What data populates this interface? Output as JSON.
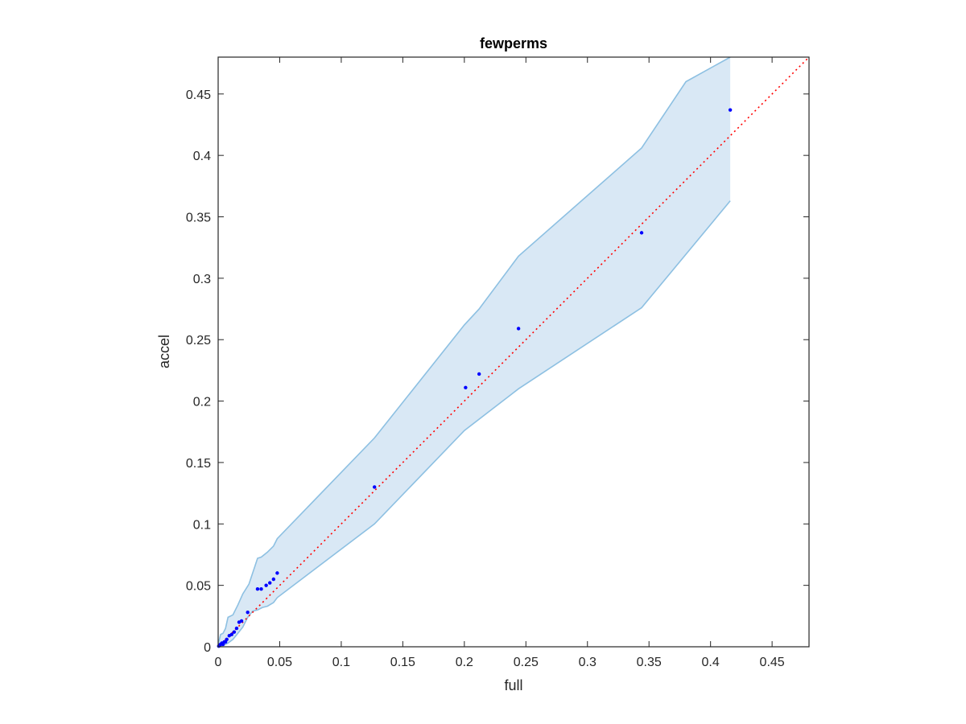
{
  "chart_data": {
    "type": "scatter",
    "title": "fewperms",
    "xlabel": "full",
    "ylabel": "accel",
    "xlim": [
      0,
      0.48
    ],
    "ylim": [
      0,
      0.48
    ],
    "xticks": [
      "0",
      "0.05",
      "0.1",
      "0.15",
      "0.2",
      "0.25",
      "0.3",
      "0.35",
      "0.4",
      "0.45"
    ],
    "yticks": [
      "0",
      "0.05",
      "0.1",
      "0.15",
      "0.2",
      "0.25",
      "0.3",
      "0.35",
      "0.4",
      "0.45"
    ],
    "grid": false,
    "colors": {
      "points": "#0000ff",
      "reference_line": "#ff0000",
      "band_fill": "#d9e8f5",
      "band_edge": "#8dc0e2",
      "axes": "#262626"
    },
    "points": [
      {
        "x": 0.0005,
        "y": 0.0005
      },
      {
        "x": 0.001,
        "y": 0.001
      },
      {
        "x": 0.0015,
        "y": 0.0015
      },
      {
        "x": 0.002,
        "y": 0.002
      },
      {
        "x": 0.003,
        "y": 0.003
      },
      {
        "x": 0.004,
        "y": 0.002
      },
      {
        "x": 0.005,
        "y": 0.004
      },
      {
        "x": 0.006,
        "y": 0.004
      },
      {
        "x": 0.007,
        "y": 0.006
      },
      {
        "x": 0.009,
        "y": 0.009
      },
      {
        "x": 0.011,
        "y": 0.01
      },
      {
        "x": 0.013,
        "y": 0.012
      },
      {
        "x": 0.015,
        "y": 0.015
      },
      {
        "x": 0.017,
        "y": 0.02
      },
      {
        "x": 0.019,
        "y": 0.021
      },
      {
        "x": 0.024,
        "y": 0.028
      },
      {
        "x": 0.032,
        "y": 0.047
      },
      {
        "x": 0.035,
        "y": 0.047
      },
      {
        "x": 0.039,
        "y": 0.05
      },
      {
        "x": 0.042,
        "y": 0.052
      },
      {
        "x": 0.045,
        "y": 0.055
      },
      {
        "x": 0.048,
        "y": 0.06
      },
      {
        "x": 0.127,
        "y": 0.13
      },
      {
        "x": 0.201,
        "y": 0.211
      },
      {
        "x": 0.212,
        "y": 0.222
      },
      {
        "x": 0.244,
        "y": 0.259
      },
      {
        "x": 0.344,
        "y": 0.337
      },
      {
        "x": 0.416,
        "y": 0.437
      }
    ],
    "reference_line": {
      "x": [
        0,
        0.48
      ],
      "y": [
        0,
        0.48
      ]
    },
    "band_upper": {
      "x": [
        0,
        0.002,
        0.004,
        0.006,
        0.008,
        0.012,
        0.016,
        0.02,
        0.025,
        0.03,
        0.032,
        0.035,
        0.04,
        0.045,
        0.048,
        0.127,
        0.2,
        0.212,
        0.244,
        0.344,
        0.38,
        0.416
      ],
      "y": [
        0.002,
        0.01,
        0.011,
        0.015,
        0.024,
        0.026,
        0.034,
        0.043,
        0.051,
        0.066,
        0.072,
        0.073,
        0.077,
        0.082,
        0.088,
        0.17,
        0.262,
        0.275,
        0.318,
        0.406,
        0.46,
        0.48
      ]
    },
    "band_lower": {
      "x": [
        0,
        0.004,
        0.008,
        0.012,
        0.016,
        0.02,
        0.024,
        0.028,
        0.032,
        0.036,
        0.04,
        0.045,
        0.048,
        0.127,
        0.2,
        0.244,
        0.344,
        0.416
      ],
      "y": [
        0,
        0.001,
        0.003,
        0.006,
        0.011,
        0.016,
        0.024,
        0.029,
        0.03,
        0.032,
        0.033,
        0.036,
        0.04,
        0.1,
        0.176,
        0.21,
        0.276,
        0.363
      ]
    }
  }
}
